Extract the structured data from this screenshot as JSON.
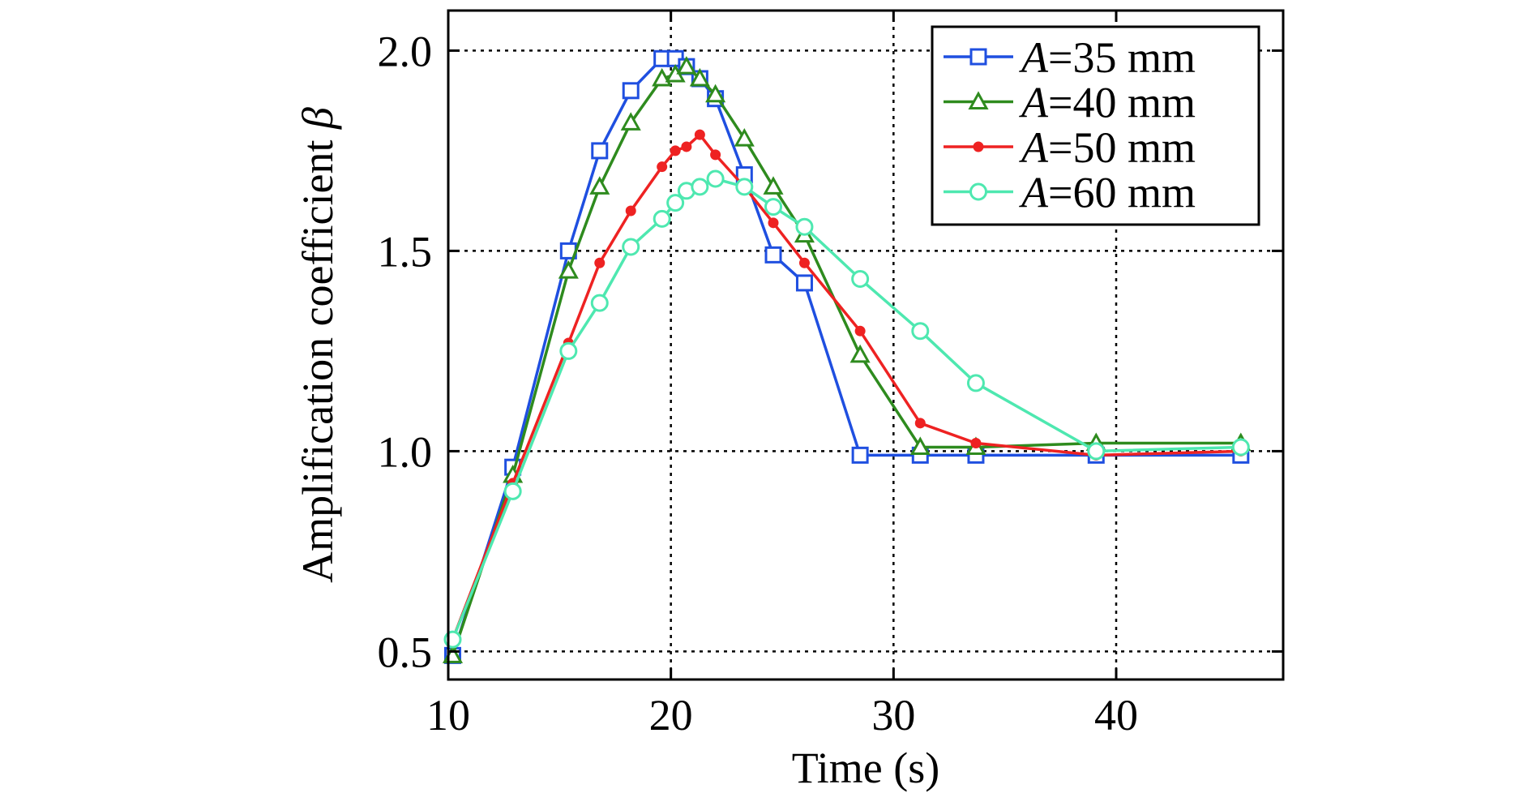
{
  "chart_data": {
    "type": "line",
    "title": "",
    "xlabel": "Time (s)",
    "ylabel_prefix": "Amplification coefficient ",
    "ylabel_symbol": "β",
    "xlim": [
      10,
      47.5
    ],
    "ylim": [
      0.43,
      2.1
    ],
    "x_ticks": [
      10,
      20,
      30,
      40
    ],
    "x_tick_labels": [
      "10",
      "20",
      "30",
      "40"
    ],
    "y_ticks": [
      0.5,
      1.0,
      1.5,
      2.0
    ],
    "y_tick_labels": [
      "0.5",
      "1.0",
      "1.5",
      "2.0"
    ],
    "grid": true,
    "legend_placement": "top-right",
    "series": [
      {
        "name_var": "A",
        "name_rest": "=35 mm",
        "color": "#1f4fe0",
        "marker": "square",
        "x": [
          10.2,
          12.9,
          15.4,
          16.8,
          18.2,
          19.6,
          20.2,
          20.7,
          21.3,
          22.0,
          23.3,
          24.6,
          26.0,
          28.5,
          31.2,
          33.7,
          39.1,
          45.6
        ],
        "y": [
          0.49,
          0.96,
          1.5,
          1.75,
          1.9,
          1.98,
          1.98,
          1.96,
          1.93,
          1.88,
          1.69,
          1.49,
          1.42,
          0.99,
          0.99,
          0.99,
          0.99,
          0.99
        ]
      },
      {
        "name_var": "A",
        "name_rest": "=40 mm",
        "color": "#2e8b1e",
        "marker": "triangle",
        "x": [
          10.2,
          12.9,
          15.4,
          16.8,
          18.2,
          19.6,
          20.2,
          20.7,
          21.3,
          22.0,
          23.3,
          24.6,
          26.0,
          28.5,
          31.2,
          33.7,
          39.1,
          45.6
        ],
        "y": [
          0.49,
          0.94,
          1.45,
          1.66,
          1.82,
          1.93,
          1.94,
          1.96,
          1.93,
          1.89,
          1.78,
          1.66,
          1.54,
          1.24,
          1.01,
          1.01,
          1.02,
          1.02
        ]
      },
      {
        "name_var": "A",
        "name_rest": "=50 mm",
        "color": "#ee2222",
        "marker": "dot",
        "x": [
          10.2,
          12.9,
          15.4,
          16.8,
          18.2,
          19.6,
          20.2,
          20.7,
          21.3,
          22.0,
          23.3,
          24.6,
          26.0,
          28.5,
          31.2,
          33.7,
          39.1,
          45.6
        ],
        "y": [
          0.53,
          0.92,
          1.27,
          1.47,
          1.6,
          1.71,
          1.75,
          1.76,
          1.79,
          1.74,
          1.66,
          1.57,
          1.47,
          1.3,
          1.07,
          1.02,
          0.99,
          1.0
        ]
      },
      {
        "name_var": "A",
        "name_rest": "=60 mm",
        "color": "#4ee8b0",
        "marker": "circle",
        "x": [
          10.2,
          12.9,
          15.4,
          16.8,
          18.2,
          19.6,
          20.2,
          20.7,
          21.3,
          22.0,
          23.3,
          24.6,
          26.0,
          28.5,
          31.2,
          33.7,
          39.1,
          45.6
        ],
        "y": [
          0.53,
          0.9,
          1.25,
          1.37,
          1.51,
          1.58,
          1.62,
          1.65,
          1.66,
          1.68,
          1.66,
          1.61,
          1.56,
          1.43,
          1.3,
          1.17,
          1.0,
          1.01
        ]
      }
    ]
  }
}
